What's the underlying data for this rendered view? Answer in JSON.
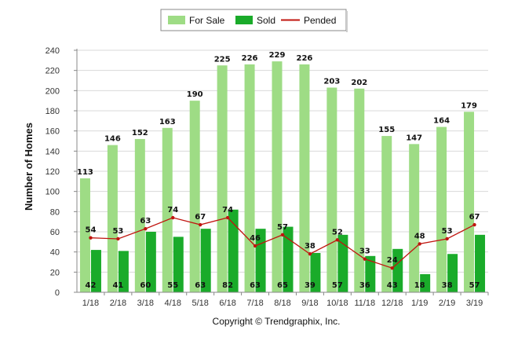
{
  "chart_data": {
    "type": "bar",
    "title": "",
    "xlabel": "",
    "ylabel": "Number of Homes",
    "ylim": [
      0,
      240
    ],
    "yticks": [
      0,
      20,
      40,
      60,
      80,
      100,
      120,
      140,
      160,
      180,
      200,
      220,
      240
    ],
    "categories": [
      "1/18",
      "2/18",
      "3/18",
      "4/18",
      "5/18",
      "6/18",
      "7/18",
      "8/18",
      "9/18",
      "10/18",
      "11/18",
      "12/18",
      "1/19",
      "2/19",
      "3/19"
    ],
    "series": [
      {
        "name": "For Sale",
        "kind": "bar",
        "color": "#9edc85",
        "values": [
          113,
          146,
          152,
          163,
          190,
          225,
          226,
          229,
          226,
          203,
          202,
          155,
          147,
          164,
          179
        ]
      },
      {
        "name": "Sold",
        "kind": "bar",
        "color": "#1aab2a",
        "values": [
          42,
          41,
          60,
          55,
          63,
          82,
          63,
          65,
          39,
          57,
          36,
          43,
          18,
          38,
          57
        ]
      },
      {
        "name": "Pended",
        "kind": "line",
        "color": "#c0150f",
        "values": [
          54,
          53,
          63,
          74,
          67,
          74,
          46,
          57,
          38,
          52,
          33,
          24,
          48,
          53,
          67
        ]
      }
    ],
    "legend_position": "top-center",
    "grid": true
  },
  "footer": {
    "copyright": "Copyright © Trendgraphix, Inc."
  }
}
